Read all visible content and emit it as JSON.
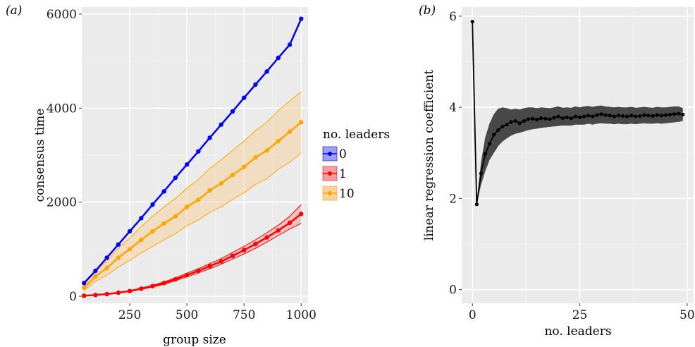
{
  "chart_data": [
    {
      "panel_label": "(a)",
      "type": "line",
      "xlabel": "group size",
      "ylabel": "consensus time",
      "xlim": [
        40,
        1030
      ],
      "ylim": [
        -150,
        6150
      ],
      "x_ticks": [
        250,
        500,
        750,
        1000
      ],
      "y_ticks": [
        0,
        2000,
        4000,
        6000
      ],
      "grid": true,
      "legend": {
        "title": "no. leaders",
        "placement": "right",
        "entries": [
          {
            "label": "0",
            "color": "#0000ff",
            "fill": "#a0a0f0"
          },
          {
            "label": "1",
            "color": "#ff0000",
            "fill": "#f0a0a0"
          },
          {
            "label": "10",
            "color": "#ffa500",
            "fill": "#f5d2a0"
          }
        ]
      },
      "x": [
        50,
        100,
        150,
        200,
        250,
        300,
        350,
        400,
        450,
        500,
        550,
        600,
        650,
        700,
        750,
        800,
        850,
        900,
        950,
        1000
      ],
      "series": [
        {
          "name": "0",
          "color": "#0000ff",
          "band_fill": "#a0a0f0",
          "values": [
            280,
            540,
            820,
            1100,
            1380,
            1660,
            1950,
            2230,
            2520,
            2800,
            3080,
            3370,
            3650,
            3930,
            4220,
            4500,
            4780,
            5070,
            5350,
            5900
          ],
          "lower": [
            280,
            540,
            820,
            1100,
            1380,
            1660,
            1950,
            2230,
            2520,
            2800,
            3080,
            3370,
            3650,
            3930,
            4220,
            4500,
            4780,
            5070,
            5350,
            5900
          ],
          "upper": [
            280,
            540,
            820,
            1100,
            1380,
            1660,
            1950,
            2230,
            2520,
            2800,
            3080,
            3370,
            3650,
            3930,
            4220,
            4500,
            4780,
            5070,
            5350,
            5900
          ]
        },
        {
          "name": "1",
          "color": "#ff0000",
          "band_fill": "#f0a0a0",
          "values": [
            10,
            25,
            45,
            75,
            110,
            160,
            215,
            280,
            360,
            450,
            540,
            640,
            740,
            860,
            980,
            1110,
            1250,
            1400,
            1560,
            1750
          ],
          "lower": [
            10,
            22,
            40,
            68,
            100,
            145,
            195,
            255,
            330,
            410,
            495,
            585,
            680,
            790,
            900,
            1020,
            1150,
            1290,
            1430,
            1550
          ],
          "upper": [
            10,
            28,
            50,
            82,
            120,
            175,
            235,
            305,
            390,
            490,
            585,
            695,
            800,
            930,
            1060,
            1200,
            1350,
            1510,
            1700,
            1950
          ]
        },
        {
          "name": "10",
          "color": "#ffa500",
          "band_fill": "#f5d2a0",
          "values": [
            180,
            420,
            600,
            820,
            1000,
            1200,
            1380,
            1550,
            1700,
            1900,
            2050,
            2250,
            2400,
            2580,
            2750,
            2950,
            3100,
            3300,
            3500,
            3700
          ],
          "lower": [
            120,
            320,
            450,
            620,
            760,
            920,
            1060,
            1200,
            1330,
            1500,
            1620,
            1780,
            1900,
            2060,
            2200,
            2380,
            2500,
            2700,
            2850,
            3050
          ],
          "upper": [
            240,
            520,
            750,
            1020,
            1240,
            1480,
            1700,
            1900,
            2080,
            2300,
            2480,
            2720,
            2900,
            3100,
            3300,
            3520,
            3700,
            3950,
            4150,
            4350
          ]
        }
      ]
    },
    {
      "panel_label": "(b)",
      "type": "line",
      "xlabel": "no. leaders",
      "ylabel": "linear regression coefficient",
      "xlim": [
        -2.5,
        51.5
      ],
      "ylim": [
        -0.3,
        6.2
      ],
      "x_ticks": [
        0,
        25,
        50
      ],
      "y_ticks": [
        0,
        2,
        4,
        6
      ],
      "grid": true,
      "color": "#000000",
      "band_fill": "#3a3a3a",
      "x": [
        0,
        1,
        2,
        3,
        4,
        5,
        6,
        7,
        8,
        9,
        10,
        11,
        12,
        13,
        14,
        15,
        16,
        17,
        18,
        19,
        20,
        21,
        22,
        23,
        24,
        25,
        26,
        27,
        28,
        29,
        30,
        31,
        32,
        33,
        34,
        35,
        36,
        37,
        38,
        39,
        40,
        41,
        42,
        43,
        44,
        45,
        46,
        47,
        48,
        49
      ],
      "values": [
        5.88,
        1.87,
        2.55,
        2.98,
        3.2,
        3.4,
        3.5,
        3.58,
        3.62,
        3.68,
        3.7,
        3.65,
        3.7,
        3.74,
        3.75,
        3.73,
        3.76,
        3.75,
        3.74,
        3.77,
        3.8,
        3.76,
        3.78,
        3.76,
        3.8,
        3.78,
        3.8,
        3.82,
        3.8,
        3.83,
        3.85,
        3.83,
        3.82,
        3.8,
        3.82,
        3.81,
        3.8,
        3.82,
        3.8,
        3.81,
        3.83,
        3.82,
        3.81,
        3.83,
        3.82,
        3.83,
        3.84,
        3.85,
        3.86,
        3.84
      ],
      "lower": [
        5.88,
        1.87,
        2.3,
        2.6,
        2.85,
        3.0,
        3.15,
        3.25,
        3.32,
        3.38,
        3.42,
        3.44,
        3.47,
        3.5,
        3.52,
        3.53,
        3.55,
        3.56,
        3.57,
        3.58,
        3.59,
        3.6,
        3.6,
        3.6,
        3.62,
        3.62,
        3.62,
        3.64,
        3.62,
        3.64,
        3.65,
        3.64,
        3.64,
        3.63,
        3.64,
        3.63,
        3.63,
        3.64,
        3.63,
        3.64,
        3.65,
        3.64,
        3.64,
        3.65,
        3.64,
        3.65,
        3.66,
        3.67,
        3.68,
        3.7
      ],
      "upper": [
        5.88,
        1.87,
        2.8,
        3.35,
        3.65,
        3.85,
        3.97,
        4.0,
        3.98,
        3.95,
        3.97,
        3.95,
        3.98,
        4.0,
        4.0,
        3.98,
        4.0,
        3.99,
        3.98,
        4.0,
        4.02,
        3.99,
        4.0,
        3.99,
        4.02,
        4.0,
        4.02,
        4.03,
        4.01,
        4.03,
        4.04,
        4.02,
        4.01,
        4.0,
        4.01,
        4.0,
        4.0,
        4.01,
        3.99,
        4.0,
        4.01,
        4.0,
        3.99,
        4.01,
        4.0,
        4.0,
        4.01,
        4.02,
        4.02,
        3.98
      ]
    }
  ]
}
